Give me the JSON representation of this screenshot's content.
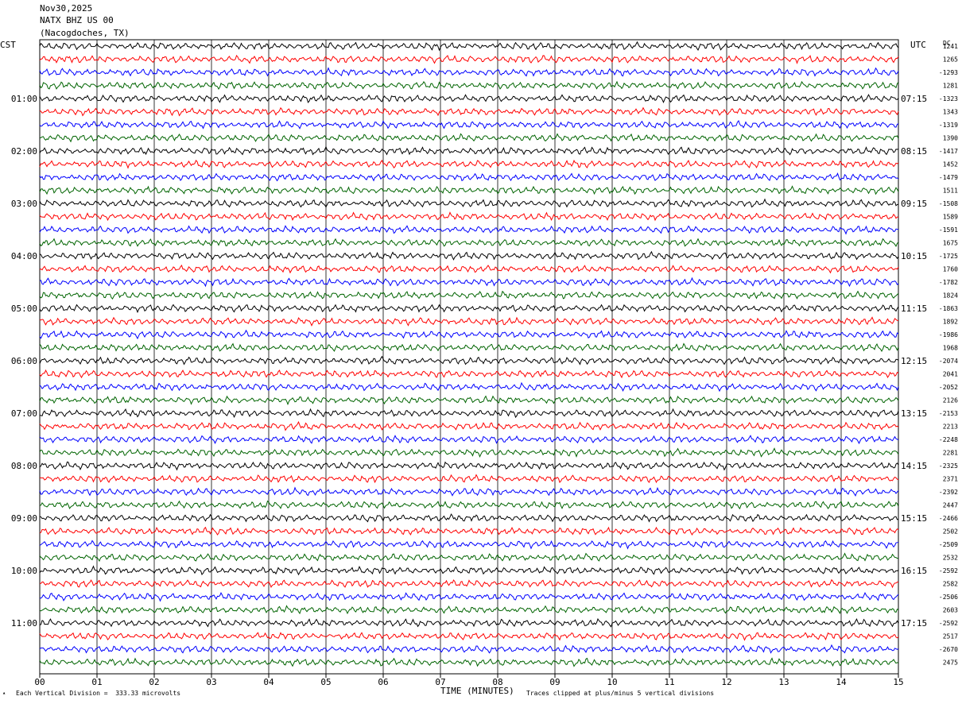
{
  "header": {
    "date": "Nov30,2025",
    "station": "NATX BHZ US 00",
    "location": "(Nacogdoches, TX)"
  },
  "left_zone": "CST",
  "right_zone": "UTC",
  "right_col_header": "DC",
  "footer": {
    "scale_note": "Each Vertical Division =  333.33 microvolts",
    "xlabel": "TIME (MINUTES)",
    "clip_note": "Traces clipped at plus/minus 5 vertical divisions"
  },
  "colors": {
    "series": [
      "#000000",
      "#ff0000",
      "#0000ff",
      "#006400"
    ],
    "grid": "#000000"
  },
  "chart_data": {
    "type": "line",
    "title": "NATX BHZ US 00",
    "xlabel": "TIME (MINUTES)",
    "x_ticks": [
      "00",
      "01",
      "02",
      "03",
      "04",
      "05",
      "06",
      "07",
      "08",
      "09",
      "10",
      "11",
      "12",
      "13",
      "14",
      "15"
    ],
    "xlim": [
      0,
      15
    ],
    "rows_per_hour": 4,
    "traces_count": 48,
    "left_hour_labels": [
      "01:00",
      "02:00",
      "03:00",
      "04:00",
      "05:00",
      "06:00",
      "07:00",
      "08:00",
      "09:00",
      "10:00",
      "11:00"
    ],
    "right_hour_labels": [
      "07:15",
      "08:15",
      "09:15",
      "10:15",
      "11:15",
      "12:15",
      "13:15",
      "14:15",
      "15:15",
      "16:15",
      "17:15"
    ],
    "dc_offsets": [
      "1241",
      "1265",
      "-1293",
      "1281",
      "-1323",
      "1343",
      "-1319",
      "1390",
      "-1417",
      "1452",
      "-1479",
      "1511",
      "-1508",
      "1589",
      "-1591",
      "1675",
      "-1725",
      "1760",
      "-1782",
      "1824",
      "-1863",
      "1892",
      "-1986",
      "1968",
      "-2074",
      "2041",
      "-2052",
      "2126",
      "-2153",
      "2213",
      "-2248",
      "2281",
      "-2325",
      "2371",
      "-2392",
      "2447",
      "-2466",
      "2502",
      "-2509",
      "2532",
      "-2592",
      "2582",
      "-2506",
      "2603",
      "-2592",
      "2517",
      "-2670",
      "2475"
    ]
  }
}
